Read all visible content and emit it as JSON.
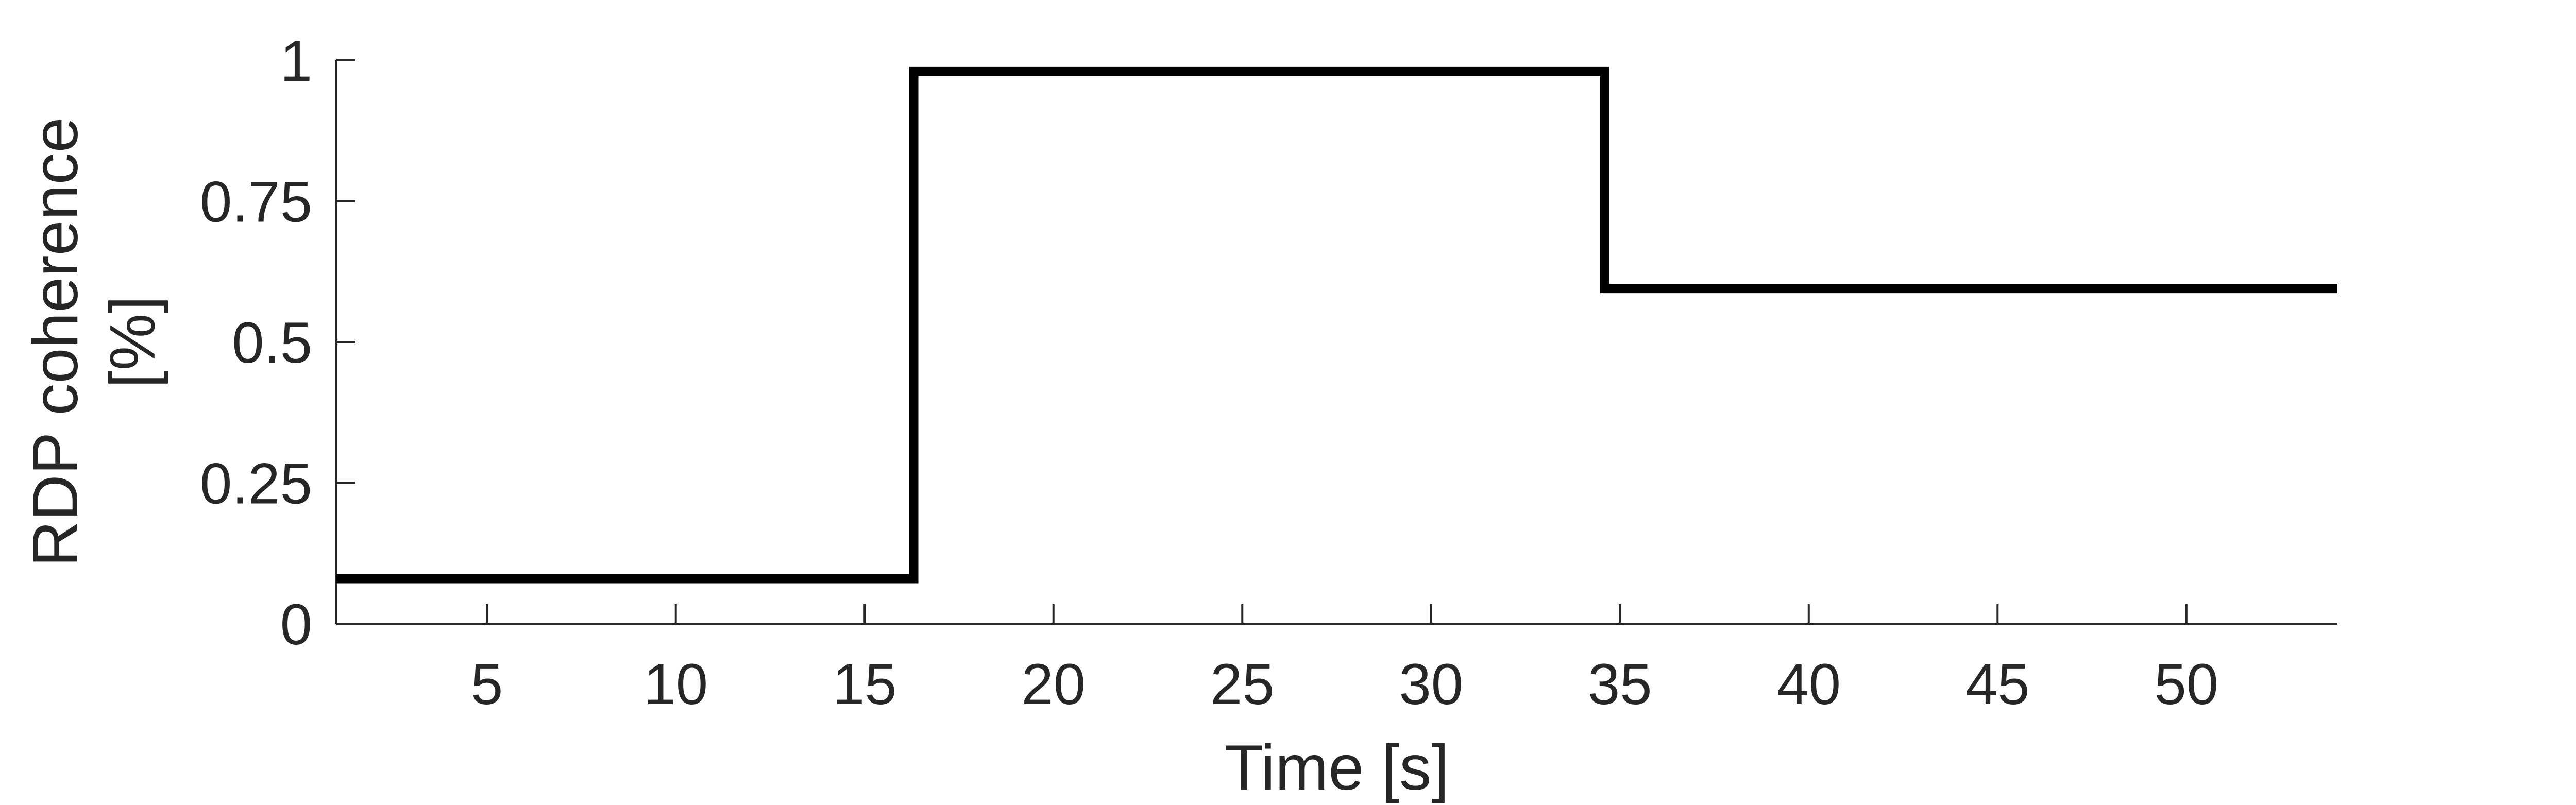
{
  "chart_data": {
    "type": "line",
    "title": "",
    "xlabel": "Time [s]",
    "ylabel": [
      "RDP coherence",
      "[%]"
    ],
    "xlim": [
      1,
      54
    ],
    "ylim": [
      0,
      1
    ],
    "x_ticks": [
      5,
      10,
      15,
      20,
      25,
      30,
      35,
      40,
      45,
      50
    ],
    "y_ticks": [
      0,
      0.25,
      0.5,
      0.75,
      1
    ],
    "y_tick_labels": [
      "0",
      "0.25",
      "0.5",
      "0.75",
      "1"
    ],
    "grid": false,
    "series": [
      {
        "name": "RDP coherence",
        "style": "step",
        "color": "#000000",
        "x": [
          1,
          16.3,
          16.3,
          34.6,
          34.6,
          54
        ],
        "y": [
          0.08,
          0.08,
          0.98,
          0.98,
          0.595,
          0.595
        ]
      }
    ]
  }
}
